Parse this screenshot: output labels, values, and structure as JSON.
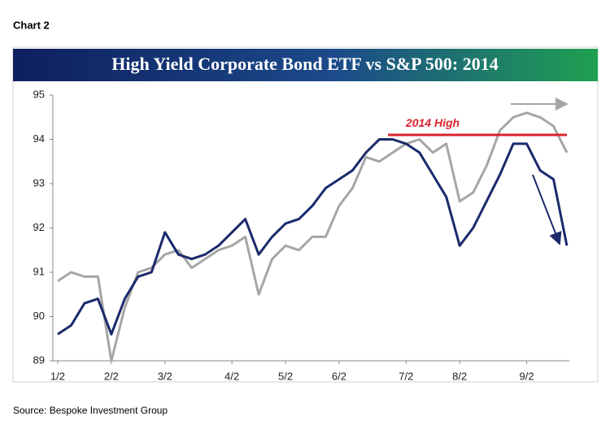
{
  "chart_data": {
    "type": "line",
    "label": "Chart 2",
    "title": "High Yield Corporate Bond ETF vs S&P 500: 2014",
    "source": "Source: Bespoke Investment Group",
    "categories": [
      "1/2",
      null,
      null,
      null,
      "2/2",
      null,
      null,
      null,
      "3/2",
      null,
      null,
      null,
      null,
      "4/2",
      null,
      null,
      null,
      "5/2",
      null,
      null,
      null,
      "6/2",
      null,
      null,
      null,
      null,
      "7/2",
      null,
      null,
      null,
      "8/2",
      null,
      null,
      null,
      null,
      "9/2",
      null,
      null,
      null
    ],
    "series": [
      {
        "name": "High Yield Corporate Bond ETF",
        "color": "#1b2a6b",
        "values": [
          89.6,
          89.8,
          90.3,
          90.4,
          89.6,
          90.4,
          90.9,
          91.0,
          91.9,
          91.4,
          91.3,
          91.4,
          91.6,
          91.9,
          92.2,
          91.4,
          91.8,
          92.1,
          92.2,
          92.5,
          92.9,
          93.1,
          93.3,
          93.7,
          94.0,
          94.0,
          93.9,
          93.7,
          93.2,
          92.7,
          91.6,
          92.0,
          92.6,
          93.2,
          93.9,
          93.9,
          93.3,
          93.1,
          91.6
        ]
      },
      {
        "name": "S&P 500",
        "color": "#a6a6a6",
        "values": [
          90.8,
          91.0,
          90.9,
          90.9,
          89.0,
          90.2,
          91.0,
          91.1,
          91.4,
          91.5,
          91.1,
          91.3,
          91.5,
          91.6,
          91.8,
          90.5,
          91.3,
          91.6,
          91.5,
          91.8,
          91.8,
          92.5,
          92.9,
          93.6,
          93.5,
          93.7,
          93.9,
          94.0,
          93.7,
          93.9,
          92.6,
          92.8,
          93.4,
          94.2,
          94.5,
          94.6,
          94.5,
          94.3,
          93.7
        ]
      }
    ],
    "annotation": {
      "text": "2014 High",
      "value": 94.1,
      "color": "#d9232d"
    },
    "ylim": [
      89,
      95
    ],
    "yticks": [
      89,
      90,
      91,
      92,
      93,
      94,
      95
    ]
  }
}
